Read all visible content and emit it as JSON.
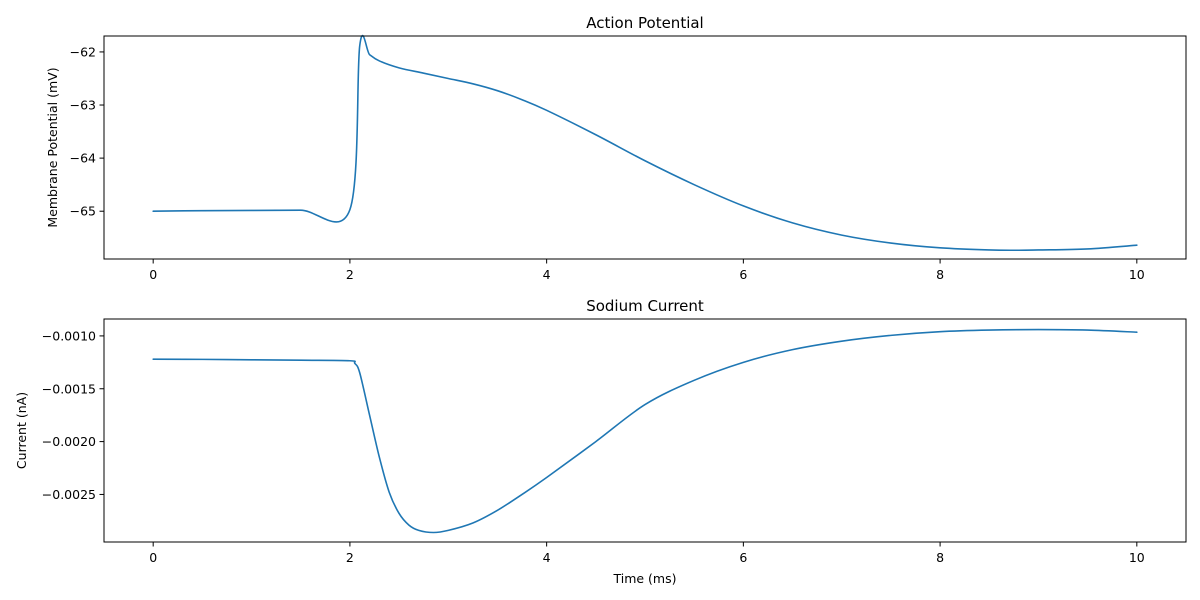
{
  "chart_data": [
    {
      "type": "line",
      "title": "Action Potential",
      "xlabel": "",
      "ylabel": "Membrane Potential (mV)",
      "xlim": [
        -0.5,
        10.5
      ],
      "ylim": [
        -65.9,
        -61.7
      ],
      "xticks": [
        0,
        2,
        4,
        6,
        8,
        10
      ],
      "xtick_labels": [
        "0",
        "2",
        "4",
        "6",
        "8",
        "10"
      ],
      "yticks": [
        -62,
        -63,
        -64,
        -65
      ],
      "ytick_labels": [
        "−62",
        "−63",
        "−64",
        "−65"
      ],
      "grid": false,
      "color": "#1f77b4",
      "series": [
        {
          "x": [
            0,
            0.5,
            1,
            1.5,
            2.0,
            2.1,
            2.2,
            2.3,
            2.5,
            2.75,
            3.0,
            3.25,
            3.5,
            3.75,
            4.0,
            4.5,
            5.0,
            5.5,
            6.0,
            6.5,
            7.0,
            7.5,
            8.0,
            8.5,
            8.8,
            9.0,
            9.5,
            10.0
          ],
          "y": [
            -65.0,
            -64.99,
            -64.985,
            -64.98,
            -64.97,
            -61.88,
            -62.05,
            -62.17,
            -62.3,
            -62.4,
            -62.5,
            -62.6,
            -62.73,
            -62.9,
            -63.1,
            -63.56,
            -64.05,
            -64.5,
            -64.9,
            -65.22,
            -65.45,
            -65.6,
            -65.69,
            -65.73,
            -65.735,
            -65.73,
            -65.71,
            -65.64
          ]
        }
      ]
    },
    {
      "type": "line",
      "title": "Sodium Current",
      "xlabel": "Time (ms)",
      "ylabel": "Current (nA)",
      "xlim": [
        -0.5,
        10.5
      ],
      "ylim": [
        -0.00295,
        -0.00084
      ],
      "xticks": [
        0,
        2,
        4,
        6,
        8,
        10
      ],
      "xtick_labels": [
        "0",
        "2",
        "4",
        "6",
        "8",
        "10"
      ],
      "yticks": [
        -0.001,
        -0.0015,
        -0.002,
        -0.0025
      ],
      "ytick_labels": [
        "−0.0010",
        "−0.0015",
        "−0.0020",
        "−0.0025"
      ],
      "grid": false,
      "color": "#1f77b4",
      "series": [
        {
          "x": [
            0,
            0.5,
            1,
            1.5,
            2.0,
            2.05,
            2.1,
            2.2,
            2.3,
            2.4,
            2.5,
            2.6,
            2.7,
            2.85,
            3.0,
            3.25,
            3.5,
            3.75,
            4.0,
            4.5,
            5.0,
            5.5,
            6.0,
            6.5,
            7.0,
            7.5,
            8.0,
            8.5,
            9.0,
            9.5,
            10.0
          ],
          "y": [
            -0.00122,
            -0.001222,
            -0.001226,
            -0.00123,
            -0.001235,
            -0.00126,
            -0.00135,
            -0.00175,
            -0.00215,
            -0.00248,
            -0.00268,
            -0.00279,
            -0.00284,
            -0.00286,
            -0.00284,
            -0.00277,
            -0.00265,
            -0.0025,
            -0.00234,
            -0.002,
            -0.00165,
            -0.00142,
            -0.00125,
            -0.00113,
            -0.00105,
            -0.000995,
            -0.00096,
            -0.000945,
            -0.00094,
            -0.000945,
            -0.000965
          ]
        }
      ]
    }
  ]
}
